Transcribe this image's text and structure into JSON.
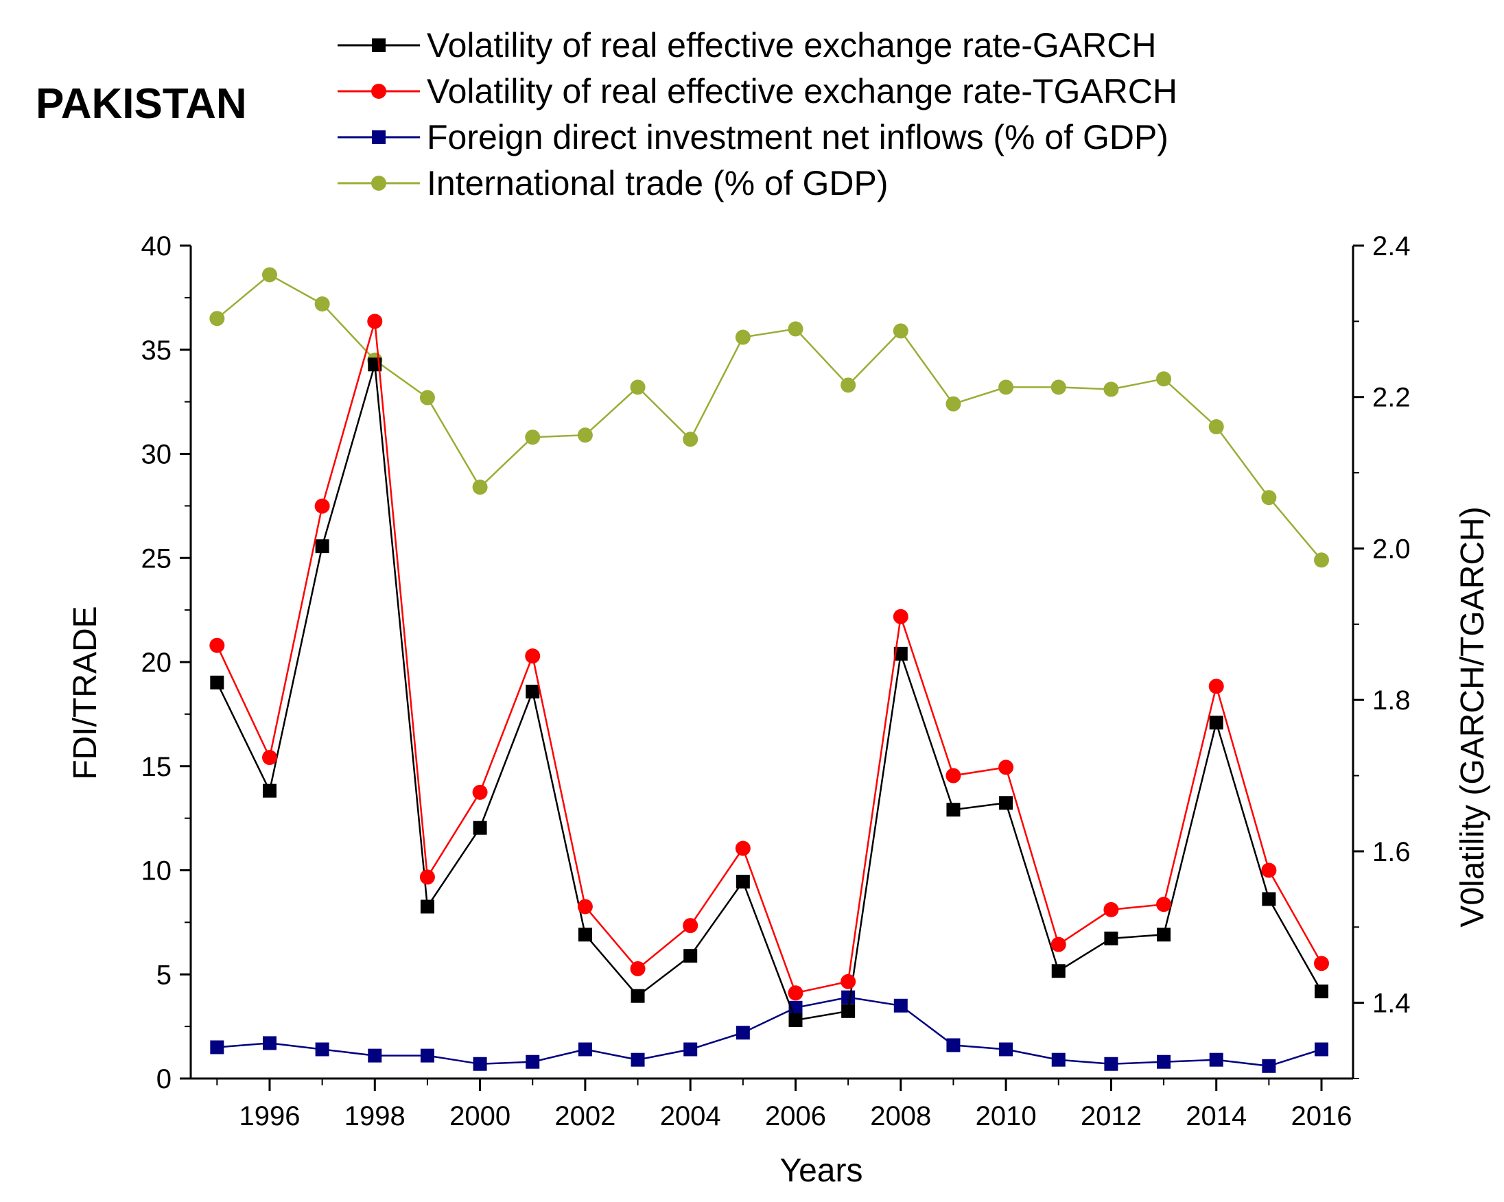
{
  "chart_data": {
    "type": "line",
    "title": "PAKISTAN",
    "xlabel": "Years",
    "ylabel_left": "FDI/TRADE",
    "ylabel_right": "V0latility (GARCH/TGARCH)",
    "xlim": [
      1994.5,
      2016.6
    ],
    "ylim_left": [
      0,
      40
    ],
    "ylim_right": [
      1.3,
      2.4
    ],
    "x_ticks": [
      "1996",
      "1998",
      "2000",
      "2002",
      "2004",
      "2006",
      "2008",
      "2010",
      "2012",
      "2014",
      "2016"
    ],
    "y_left_ticks": [
      "0",
      "5",
      "10",
      "15",
      "20",
      "25",
      "30",
      "35",
      "40"
    ],
    "y_right_ticks": [
      "1.4",
      "1.6",
      "1.8",
      "2.0",
      "2.2",
      "2.4"
    ],
    "legend_position": "top",
    "x": [
      1995,
      1996,
      1997,
      1998,
      1999,
      2000,
      2001,
      2002,
      2003,
      2004,
      2005,
      2006,
      2007,
      2008,
      2009,
      2010,
      2011,
      2012,
      2013,
      2014,
      2015,
      2016
    ],
    "series": [
      {
        "name": "Volatility of real effective exchange rate-GARCH",
        "axis": "right",
        "color": "#000000",
        "marker": "square",
        "values": [
          1.823,
          1.68,
          2.003,
          2.243,
          1.527,
          1.631,
          1.811,
          1.49,
          1.409,
          1.462,
          1.56,
          1.377,
          1.389,
          1.861,
          1.655,
          1.664,
          1.442,
          1.485,
          1.49,
          1.77,
          1.537,
          1.415
        ]
      },
      {
        "name": "Volatility of real effective exchange rate-TGARCH",
        "axis": "right",
        "color": "#ff0000",
        "marker": "circle",
        "values": [
          1.872,
          1.724,
          2.056,
          2.3,
          1.566,
          1.678,
          1.858,
          1.527,
          1.445,
          1.502,
          1.604,
          1.413,
          1.428,
          1.91,
          1.7,
          1.711,
          1.477,
          1.523,
          1.53,
          1.818,
          1.575,
          1.452
        ]
      },
      {
        "name": "Foreign direct investment net inflows (% of GDP)",
        "axis": "left",
        "color": "#000080",
        "marker": "square",
        "values": [
          1.5,
          1.7,
          1.4,
          1.1,
          1.1,
          0.7,
          0.8,
          1.4,
          0.9,
          1.4,
          2.2,
          3.4,
          3.9,
          3.5,
          1.6,
          1.4,
          0.9,
          0.7,
          0.8,
          0.9,
          0.6,
          1.4
        ]
      },
      {
        "name": "International trade (% of GDP)",
        "axis": "left",
        "color": "#9aad35",
        "marker": "circle",
        "values": [
          36.5,
          38.6,
          37.2,
          34.5,
          32.7,
          28.4,
          30.8,
          30.9,
          33.2,
          30.7,
          35.6,
          36.0,
          33.3,
          35.9,
          32.4,
          33.2,
          33.2,
          33.1,
          33.6,
          31.3,
          27.9,
          24.9
        ]
      }
    ]
  }
}
